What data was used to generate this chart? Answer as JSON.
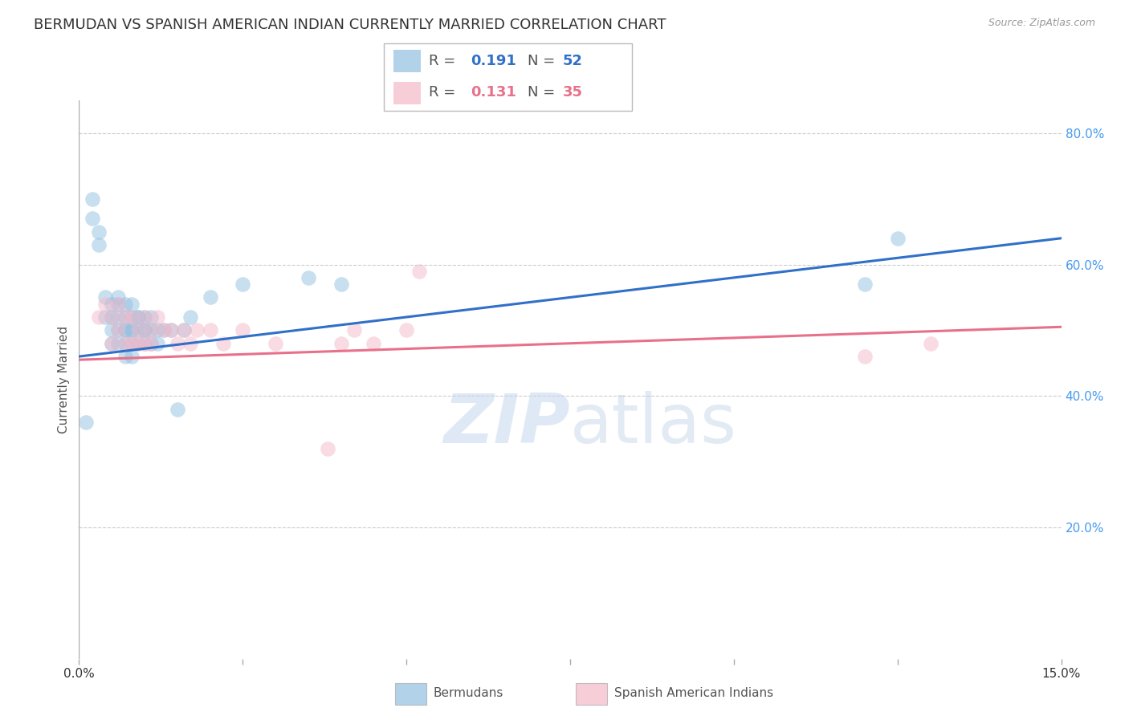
{
  "title": "BERMUDAN VS SPANISH AMERICAN INDIAN CURRENTLY MARRIED CORRELATION CHART",
  "source": "Source: ZipAtlas.com",
  "ylabel_label": "Currently Married",
  "xlim": [
    0.0,
    0.15
  ],
  "ylim": [
    0.0,
    0.85
  ],
  "xticks": [
    0.0,
    0.025,
    0.05,
    0.075,
    0.1,
    0.125,
    0.15
  ],
  "xtick_labels": [
    "0.0%",
    "",
    "",
    "",
    "",
    "",
    "15.0%"
  ],
  "ytick_right_labels": [
    "80.0%",
    "60.0%",
    "40.0%",
    "20.0%"
  ],
  "ytick_right_values": [
    0.8,
    0.6,
    0.4,
    0.2
  ],
  "watermark_zip": "ZIP",
  "watermark_atlas": "atlas",
  "legend_blue_R": "0.191",
  "legend_blue_N": "52",
  "legend_pink_R": "0.131",
  "legend_pink_N": "35",
  "legend_label_blue": "Bermudans",
  "legend_label_pink": "Spanish American Indians",
  "blue_color": "#92c0e0",
  "pink_color": "#f4b8c8",
  "blue_line_color": "#3070c8",
  "pink_line_color": "#e8708a",
  "blue_scatter_x": [
    0.001,
    0.002,
    0.002,
    0.003,
    0.003,
    0.004,
    0.004,
    0.005,
    0.005,
    0.005,
    0.005,
    0.006,
    0.006,
    0.006,
    0.006,
    0.006,
    0.007,
    0.007,
    0.007,
    0.007,
    0.007,
    0.007,
    0.008,
    0.008,
    0.008,
    0.008,
    0.008,
    0.008,
    0.009,
    0.009,
    0.009,
    0.009,
    0.01,
    0.01,
    0.01,
    0.01,
    0.011,
    0.011,
    0.011,
    0.012,
    0.012,
    0.013,
    0.014,
    0.015,
    0.016,
    0.017,
    0.02,
    0.025,
    0.035,
    0.04,
    0.12,
    0.125
  ],
  "blue_scatter_y": [
    0.36,
    0.7,
    0.67,
    0.65,
    0.63,
    0.55,
    0.52,
    0.54,
    0.52,
    0.5,
    0.48,
    0.55,
    0.54,
    0.52,
    0.5,
    0.48,
    0.54,
    0.52,
    0.5,
    0.5,
    0.48,
    0.46,
    0.54,
    0.52,
    0.5,
    0.5,
    0.48,
    0.46,
    0.52,
    0.52,
    0.5,
    0.48,
    0.52,
    0.5,
    0.5,
    0.48,
    0.52,
    0.5,
    0.48,
    0.5,
    0.48,
    0.5,
    0.5,
    0.38,
    0.5,
    0.52,
    0.55,
    0.57,
    0.58,
    0.57,
    0.57,
    0.64
  ],
  "pink_scatter_x": [
    0.003,
    0.004,
    0.005,
    0.005,
    0.006,
    0.006,
    0.007,
    0.007,
    0.008,
    0.008,
    0.009,
    0.009,
    0.01,
    0.01,
    0.011,
    0.011,
    0.012,
    0.013,
    0.014,
    0.015,
    0.016,
    0.017,
    0.018,
    0.02,
    0.022,
    0.025,
    0.03,
    0.038,
    0.04,
    0.042,
    0.045,
    0.05,
    0.052,
    0.12,
    0.13
  ],
  "pink_scatter_y": [
    0.52,
    0.54,
    0.52,
    0.48,
    0.54,
    0.5,
    0.52,
    0.48,
    0.52,
    0.48,
    0.5,
    0.48,
    0.52,
    0.48,
    0.5,
    0.48,
    0.52,
    0.5,
    0.5,
    0.48,
    0.5,
    0.48,
    0.5,
    0.5,
    0.48,
    0.5,
    0.48,
    0.32,
    0.48,
    0.5,
    0.48,
    0.5,
    0.59,
    0.46,
    0.48
  ],
  "blue_trend_x": [
    0.0,
    0.15
  ],
  "blue_trend_y": [
    0.46,
    0.64
  ],
  "pink_trend_x": [
    0.0,
    0.15
  ],
  "pink_trend_y": [
    0.455,
    0.505
  ],
  "grid_color": "#cccccc",
  "background_color": "#ffffff",
  "title_color": "#333333",
  "right_axis_color": "#4499ee",
  "title_fontsize": 13,
  "axis_label_fontsize": 11
}
